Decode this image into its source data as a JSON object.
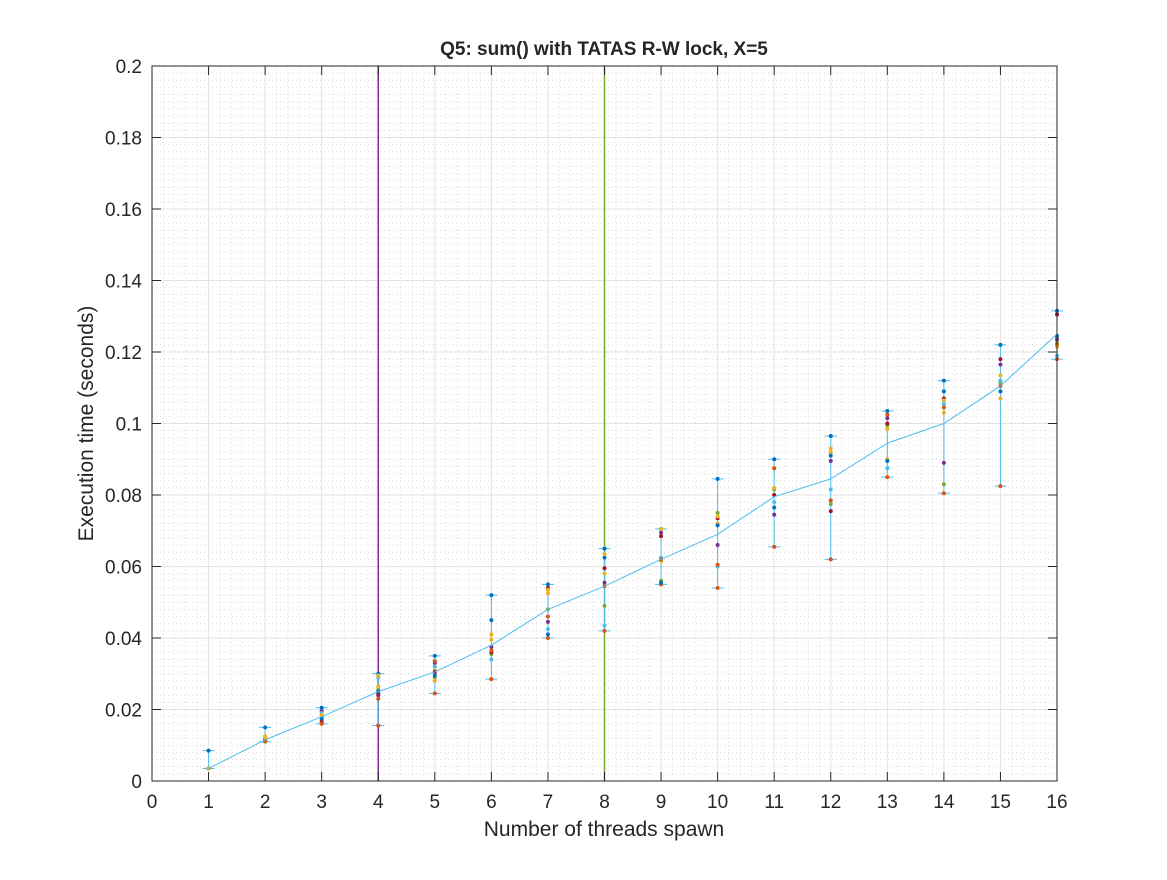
{
  "chart_data": {
    "type": "line",
    "title": "Q5: sum() with TATAS R-W lock, X=5",
    "xlabel": "Number of threads spawn",
    "ylabel": "Execution time (seconds)",
    "xlim": [
      0,
      16
    ],
    "ylim": [
      0,
      0.2
    ],
    "xticks": [
      "0",
      "1",
      "2",
      "3",
      "4",
      "5",
      "6",
      "7",
      "8",
      "9",
      "10",
      "11",
      "12",
      "13",
      "14",
      "15",
      "16"
    ],
    "yticks": [
      "0",
      "0.02",
      "0.04",
      "0.06",
      "0.08",
      "0.1",
      "0.12",
      "0.14",
      "0.16",
      "0.18",
      "0.2"
    ],
    "grid": "major and minor",
    "reference_lines": [
      {
        "x": 4,
        "color": "#7E2F8E"
      },
      {
        "x": 8,
        "color": "#77AC30"
      }
    ],
    "series": [
      {
        "color": "#4DBEEE",
        "x": [
          1,
          2,
          3,
          4,
          5,
          6,
          7,
          8,
          9,
          10,
          11,
          12,
          13,
          14,
          15,
          16
        ],
        "mean": [
          0.0035,
          0.0115,
          0.018,
          0.025,
          0.0305,
          0.038,
          0.048,
          0.0545,
          0.062,
          0.069,
          0.0795,
          0.0845,
          0.0945,
          0.1,
          0.1105,
          0.125
        ],
        "min": [
          0.0035,
          0.011,
          0.016,
          0.0155,
          0.0245,
          0.0285,
          0.04,
          0.042,
          0.055,
          0.054,
          0.0655,
          0.062,
          0.085,
          0.0805,
          0.0825,
          0.118
        ],
        "max": [
          0.0085,
          0.015,
          0.0205,
          0.03,
          0.035,
          0.052,
          0.055,
          0.065,
          0.0705,
          0.0845,
          0.09,
          0.0965,
          0.1035,
          0.112,
          0.122,
          0.1315
        ]
      }
    ],
    "trials": [
      [
        0.0085,
        0.0035,
        0.0035,
        0.0035,
        0.0035,
        0.0035,
        0.0035,
        0.0035,
        0.0035,
        0.0035
      ],
      [
        0.015,
        0.011,
        0.0125,
        0.0115,
        0.011,
        0.012,
        0.0113,
        0.0118,
        0.0112,
        0.0122
      ],
      [
        0.0205,
        0.016,
        0.018,
        0.0195,
        0.017,
        0.019,
        0.0165,
        0.0175,
        0.016,
        0.0185
      ],
      [
        0.03,
        0.0155,
        0.0265,
        0.024,
        0.0255,
        0.029,
        0.0245,
        0.025,
        0.023,
        0.0295
      ],
      [
        0.035,
        0.0245,
        0.031,
        0.033,
        0.029,
        0.032,
        0.0305,
        0.0295,
        0.0335,
        0.028
      ],
      [
        0.052,
        0.0285,
        0.041,
        0.0375,
        0.0355,
        0.034,
        0.036,
        0.045,
        0.0365,
        0.0395
      ],
      [
        0.055,
        0.04,
        0.0525,
        0.0445,
        0.048,
        0.0425,
        0.054,
        0.041,
        0.046,
        0.0535
      ],
      [
        0.065,
        0.042,
        0.058,
        0.0555,
        0.049,
        0.0435,
        0.0595,
        0.0625,
        0.0545,
        0.0635
      ],
      [
        0.0705,
        0.055,
        0.0615,
        0.0695,
        0.056,
        0.0625,
        0.0685,
        0.0555,
        0.062,
        0.0705
      ],
      [
        0.0845,
        0.054,
        0.072,
        0.066,
        0.075,
        0.06,
        0.0735,
        0.0715,
        0.0605,
        0.074
      ],
      [
        0.09,
        0.0655,
        0.0875,
        0.0745,
        0.0815,
        0.078,
        0.08,
        0.0765,
        0.0875,
        0.082
      ],
      [
        0.0965,
        0.062,
        0.092,
        0.0895,
        0.0775,
        0.0815,
        0.0755,
        0.091,
        0.0785,
        0.093
      ],
      [
        0.1035,
        0.085,
        0.09,
        0.1015,
        0.0995,
        0.0875,
        0.1,
        0.0895,
        0.1025,
        0.0985
      ],
      [
        0.112,
        0.0805,
        0.103,
        0.089,
        0.083,
        0.1055,
        0.107,
        0.109,
        0.1045,
        0.1065
      ],
      [
        0.122,
        0.0825,
        0.107,
        0.1165,
        0.1115,
        0.112,
        0.118,
        0.109,
        0.1105,
        0.1135
      ],
      [
        0.1315,
        0.118,
        0.124,
        0.1235,
        0.1225,
        0.119,
        0.1305,
        0.1245,
        0.122,
        0.1215
      ]
    ],
    "trial_colors": [
      "#0072BD",
      "#D95319",
      "#EDB120",
      "#7E2F8E",
      "#77AC30",
      "#4DBEEE",
      "#A2142F"
    ]
  }
}
